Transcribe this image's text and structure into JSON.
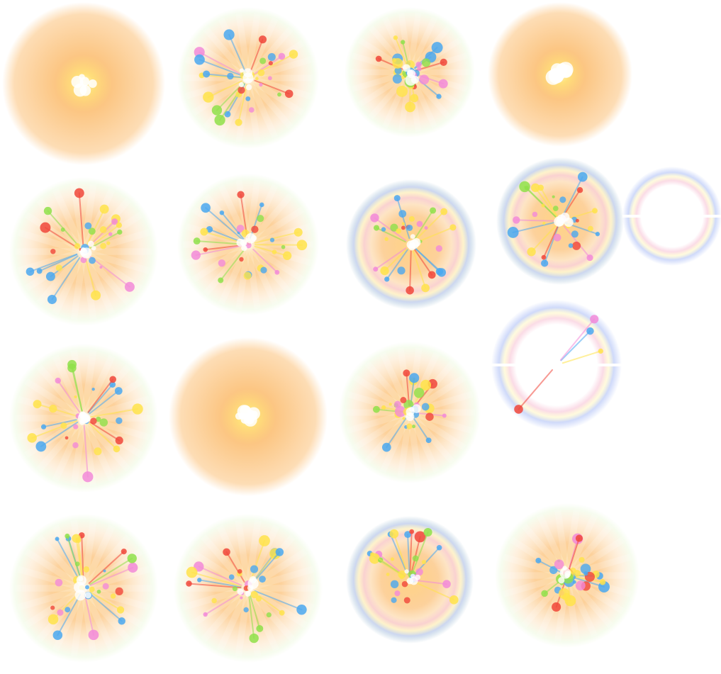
{
  "sprite_sheet": {
    "frames": [
      {
        "kind": "glow-core"
      },
      {
        "kind": "burst-radial"
      },
      {
        "kind": "burst-dense"
      },
      {
        "kind": "glow-bright"
      },
      {
        "kind": "burst-radial"
      },
      {
        "kind": "burst-radial"
      },
      {
        "kind": "burst-ring"
      },
      {
        "kind": "burst-ring"
      },
      {
        "kind": "ring-fade"
      },
      {
        "kind": "burst-radial"
      },
      {
        "kind": "glow-bright"
      },
      {
        "kind": "burst-dense"
      },
      {
        "kind": "ring-fade-sparks"
      },
      {
        "kind": "burst-radial"
      },
      {
        "kind": "burst-radial"
      },
      {
        "kind": "burst-ring"
      },
      {
        "kind": "burst-dense"
      }
    ],
    "colors": {
      "glow": "#fbb35a",
      "core": "#fff6c8",
      "halo": "#e6f7cf",
      "spark_blue": "#4aa8f0",
      "spark_red": "#f0463a",
      "spark_yellow": "#ffe34a",
      "spark_pink": "#f28ad8",
      "spark_green": "#8fe04a",
      "ring_blue": "#9fb4f5",
      "ring_pink": "#f5b0c8"
    }
  }
}
